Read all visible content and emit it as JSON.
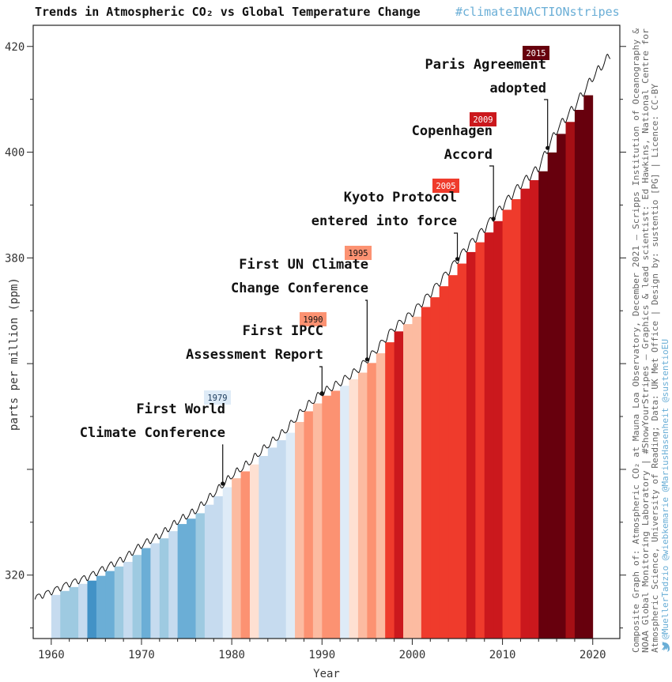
{
  "page": {
    "title": "Trends in Atmospheric CO₂ vs Global Temperature Change",
    "hashtag": "#climateINACTIONstripes"
  },
  "credits": {
    "line1": "Composite Graph of: Atmospheric CO₂ at Mauna Loa Observatory, December 2021 — Scripps Institution of Oceanography &",
    "line2": "NOAA Global Monitoring Laboratory | #ShowYourStripes — Graphics & lead scientist: Ed Hawkins, National Centre for",
    "line3": "Atmospheric Science, University of Reading; Data: UK Met Office | Design by: sustentio [PG] | Licence: CC-BY",
    "line4": "@MuellerTadzio @wiebkemarie @MariusHasenheit @sustentioEU"
  },
  "chart_data": {
    "type": "line",
    "xlabel": "Year",
    "ylabel": "parts per million (ppm)",
    "xlim": [
      1958,
      2023
    ],
    "ylim": [
      308,
      424
    ],
    "xticks": [
      1960,
      1970,
      1980,
      1990,
      2000,
      2010,
      2020
    ],
    "yticks": [
      320,
      380,
      400,
      420
    ],
    "grid": false,
    "series": [
      {
        "x": [
          1958.2,
          1960,
          1962,
          1964,
          1966,
          1968,
          1970,
          1972,
          1974,
          1976,
          1978,
          1980,
          1982,
          1984,
          1986,
          1988,
          1990,
          1992,
          1994,
          1996,
          1998,
          2000,
          2002,
          2004,
          2006,
          2008,
          2010,
          2012,
          2014,
          2016,
          2018,
          2020,
          2022
        ],
        "y": [
          315.7,
          316.9,
          318.4,
          319.6,
          321.4,
          323.1,
          325.7,
          327.5,
          330.2,
          332.2,
          335.4,
          338.8,
          341.4,
          344.6,
          347.4,
          351.5,
          354.5,
          356.4,
          358.9,
          362.6,
          366.8,
          369.6,
          373.3,
          377.5,
          381.9,
          385.6,
          389.9,
          393.9,
          397.1,
          404.2,
          408.7,
          414.2,
          418.5
        ]
      }
    ],
    "warming_stripes": {
      "start_year": 1960,
      "end_year": 2019,
      "colors": [
        "#c6dbef",
        "#9ecae1",
        "#9ecae1",
        "#c6dbef",
        "#4292c6",
        "#6baed6",
        "#6baed6",
        "#9ecae1",
        "#c6dbef",
        "#9ecae1",
        "#6baed6",
        "#c6dbef",
        "#9ecae1",
        "#c6dbef",
        "#6baed6",
        "#6baed6",
        "#9ecae1",
        "#c6dbef",
        "#c6dbef",
        "#deebf7",
        "#fcbba1",
        "#fc9272",
        "#fee0d2",
        "#c6dbef",
        "#c6dbef",
        "#c6dbef",
        "#deebf7",
        "#fcbba1",
        "#fc9272",
        "#fcbba1",
        "#fc9272",
        "#fc9272",
        "#deebf7",
        "#fee0d2",
        "#fcbba1",
        "#fc9272",
        "#fcbba1",
        "#ef3b2c",
        "#cb181d",
        "#fcbba1",
        "#fcbba1",
        "#ef3b2c",
        "#ef3b2c",
        "#ef3b2c",
        "#ef3b2c",
        "#ef3b2c",
        "#cb181d",
        "#ef3b2c",
        "#cb181d",
        "#cb181d",
        "#ef3b2c",
        "#ef3b2c",
        "#cb181d",
        "#cb181d",
        "#67000d",
        "#67000d",
        "#67000d",
        "#a50f15",
        "#67000d",
        "#67000d"
      ]
    },
    "annotations": [
      {
        "year": "1979",
        "line1": "First World",
        "line2": "Climate Conference",
        "point_x": 1979,
        "point_y": 337.3,
        "badge_color": "#deebf7",
        "badge_text_color": "#1a3a5c"
      },
      {
        "year": "1990",
        "line1": "First IPCC",
        "line2": "Assessment Report",
        "point_x": 1990,
        "point_y": 354.4,
        "badge_color": "#fc9272",
        "badge_text_color": "#111111"
      },
      {
        "year": "1995",
        "line1": "First UN Climate",
        "line2": "Change Conference",
        "point_x": 1995,
        "point_y": 360.8,
        "badge_color": "#fc9272",
        "badge_text_color": "#111111"
      },
      {
        "year": "2005",
        "line1": "Kyoto Protocol",
        "line2": "entered into force",
        "point_x": 2005,
        "point_y": 379.8,
        "badge_color": "#ef3b2c",
        "badge_text_color": "#ffffff"
      },
      {
        "year": "2009",
        "line1": "Copenhagen",
        "line2": "Accord",
        "point_x": 2009,
        "point_y": 387.4,
        "badge_color": "#cb181d",
        "badge_text_color": "#ffffff"
      },
      {
        "year": "2015",
        "line1": "Paris Agreement",
        "line2": "adopted",
        "point_x": 2015,
        "point_y": 400.8,
        "badge_color": "#67000d",
        "badge_text_color": "#ffffff"
      }
    ]
  }
}
